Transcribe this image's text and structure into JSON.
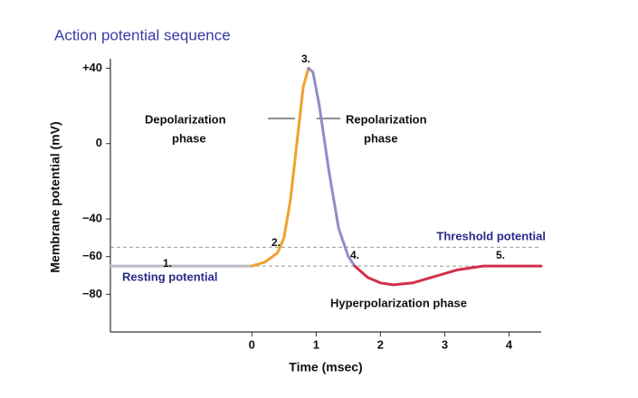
{
  "chart_data": {
    "type": "line",
    "title": "Action potential sequence",
    "y_label": "Membrane potential (mV)",
    "x_label": "Time (msec)",
    "xlim": [
      -2.2,
      4.5
    ],
    "ylim": [
      -100,
      45
    ],
    "xticks": [
      0,
      1,
      2,
      3,
      4
    ],
    "yticks": [
      {
        "value": 40,
        "label": "+40"
      },
      0,
      {
        "value": -40,
        "label": "−40"
      },
      {
        "value": -60,
        "label": "−60"
      },
      {
        "value": -80,
        "label": "−80"
      }
    ],
    "series": [
      {
        "color": "#babac4",
        "x": [
          -2.2,
          0
        ],
        "values": [
          -65,
          -65
        ]
      },
      {
        "color": "#f0a22e",
        "x": [
          0,
          0.2,
          0.4,
          0.5,
          0.6,
          0.7,
          0.8,
          0.88
        ],
        "values": [
          -65,
          -63,
          -58,
          -50,
          -30,
          0,
          30,
          40
        ]
      },
      {
        "color": "#8e8ec8",
        "x": [
          0.88,
          0.95,
          1.05,
          1.2,
          1.35,
          1.5,
          1.6
        ],
        "values": [
          40,
          38,
          20,
          -15,
          -45,
          -60,
          -65
        ]
      },
      {
        "color": "#d2304c",
        "x": [
          1.6,
          1.8,
          2.0,
          2.2,
          2.5,
          2.8,
          3.2,
          3.6,
          4.5
        ],
        "values": [
          -65,
          -71,
          -74,
          -75,
          -74,
          -71,
          -67,
          -65,
          -65
        ]
      }
    ],
    "reference_lines": [
      {
        "label": "Threshold potential",
        "value": -55
      },
      {
        "label": "Resting potential",
        "value": -65
      }
    ],
    "annotations": [
      "1.",
      "2.",
      "3.",
      "4.",
      "5.",
      "Depolarization",
      "phase",
      "Repolarization",
      "phase",
      "Hyperpolarization phase"
    ]
  }
}
